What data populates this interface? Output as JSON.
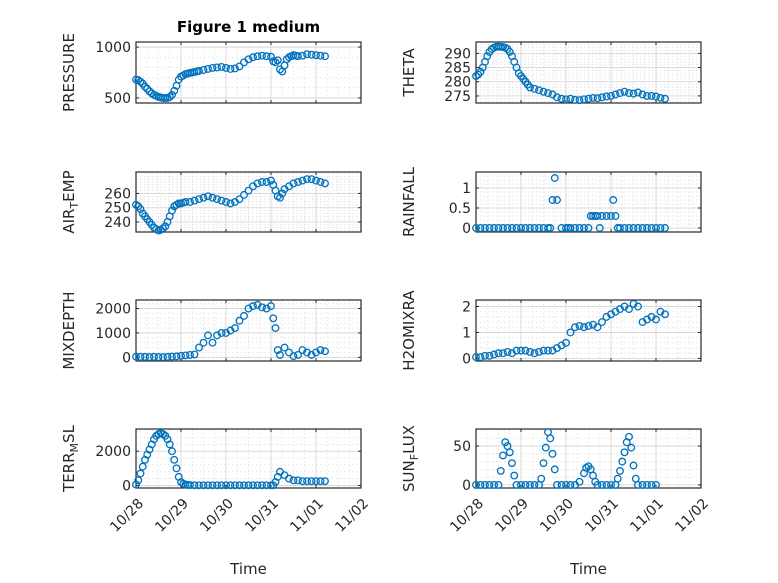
{
  "figure": {
    "title": "Figure 1 medium",
    "marker_color": "#0072bd",
    "grid": "major+minor"
  },
  "chart_data": [
    {
      "type": "scatter",
      "title": "Figure 1 medium",
      "ylabel": "PRESSURE",
      "xlabel": "",
      "xlim": [
        0,
        5
      ],
      "ylim": [
        450,
        1050
      ],
      "yticks": [
        500,
        1000
      ],
      "x": [
        0,
        0.05,
        0.1,
        0.15,
        0.2,
        0.25,
        0.3,
        0.35,
        0.4,
        0.45,
        0.5,
        0.55,
        0.6,
        0.65,
        0.7,
        0.75,
        0.8,
        0.85,
        0.9,
        0.95,
        1.0,
        1.05,
        1.1,
        1.15,
        1.2,
        1.25,
        1.3,
        1.35,
        1.4,
        1.5,
        1.6,
        1.7,
        1.8,
        1.9,
        2.0,
        2.1,
        2.2,
        2.3,
        2.4,
        2.5,
        2.6,
        2.7,
        2.8,
        2.9,
        3.0,
        3.05,
        3.1,
        3.15,
        3.2,
        3.25,
        3.3,
        3.35,
        3.4,
        3.45,
        3.5,
        3.55,
        3.6,
        3.7,
        3.8,
        3.9,
        4.0,
        4.1,
        4.2
      ],
      "y": [
        680,
        675,
        660,
        640,
        610,
        590,
        565,
        545,
        530,
        520,
        510,
        505,
        500,
        498,
        500,
        510,
        530,
        570,
        620,
        680,
        710,
        720,
        735,
        740,
        745,
        750,
        755,
        760,
        765,
        775,
        785,
        795,
        800,
        805,
        795,
        785,
        790,
        810,
        850,
        880,
        900,
        910,
        915,
        910,
        905,
        860,
        850,
        870,
        780,
        760,
        820,
        880,
        900,
        910,
        920,
        915,
        910,
        915,
        930,
        925,
        920,
        915,
        910
      ]
    },
    {
      "type": "scatter",
      "title": "",
      "ylabel": "THETA",
      "xlabel": "",
      "xlim": [
        0,
        5
      ],
      "ylim": [
        272.5,
        294
      ],
      "yticks": [
        275,
        280,
        285,
        290
      ],
      "x": [
        0,
        0.05,
        0.1,
        0.15,
        0.2,
        0.25,
        0.3,
        0.35,
        0.4,
        0.45,
        0.5,
        0.55,
        0.6,
        0.65,
        0.7,
        0.75,
        0.8,
        0.85,
        0.9,
        0.95,
        1.0,
        1.05,
        1.1,
        1.15,
        1.2,
        1.3,
        1.4,
        1.5,
        1.6,
        1.7,
        1.8,
        1.9,
        2.0,
        2.1,
        2.2,
        2.3,
        2.4,
        2.5,
        2.6,
        2.7,
        2.8,
        2.9,
        3.0,
        3.1,
        3.2,
        3.3,
        3.4,
        3.5,
        3.6,
        3.7,
        3.8,
        3.9,
        4.0,
        4.1,
        4.2
      ],
      "y": [
        282,
        282.5,
        283.5,
        285,
        287,
        289,
        290.5,
        291.5,
        292,
        292.3,
        292.4,
        292.3,
        292.2,
        292,
        291.5,
        290.5,
        289,
        287,
        285,
        283,
        282,
        281,
        280,
        279,
        278,
        277.5,
        277,
        276.5,
        276,
        275.5,
        274.5,
        274,
        273.8,
        274,
        273.6,
        273.5,
        273.8,
        274,
        274.3,
        274.2,
        274.5,
        274.8,
        275,
        275.5,
        276,
        276.5,
        276,
        275.8,
        276.2,
        275.5,
        275,
        275,
        274.8,
        274.3,
        274
      ]
    },
    {
      "type": "scatter",
      "title": "",
      "ylabel": "AIR_TEMP",
      "xlabel": "",
      "xlim": [
        0,
        5
      ],
      "ylim": [
        233,
        275
      ],
      "yticks": [
        240,
        250,
        260
      ],
      "x": [
        0,
        0.05,
        0.1,
        0.15,
        0.2,
        0.25,
        0.3,
        0.35,
        0.4,
        0.45,
        0.5,
        0.55,
        0.6,
        0.65,
        0.7,
        0.75,
        0.8,
        0.85,
        0.9,
        0.95,
        1.0,
        1.05,
        1.1,
        1.2,
        1.3,
        1.4,
        1.5,
        1.6,
        1.7,
        1.8,
        1.9,
        2.0,
        2.1,
        2.2,
        2.3,
        2.4,
        2.5,
        2.6,
        2.7,
        2.8,
        2.9,
        3.0,
        3.05,
        3.1,
        3.15,
        3.2,
        3.25,
        3.3,
        3.4,
        3.5,
        3.6,
        3.7,
        3.8,
        3.9,
        4.0,
        4.1,
        4.2
      ],
      "y": [
        252,
        251,
        249,
        246,
        244,
        242,
        240,
        238,
        236,
        235,
        234,
        234.5,
        235.5,
        237,
        240,
        244,
        248,
        251,
        252,
        253,
        253,
        253.5,
        254,
        254,
        255,
        256,
        257,
        258,
        257,
        256,
        255,
        254,
        253,
        254,
        256,
        259,
        262,
        265,
        267,
        268,
        268,
        269,
        266,
        262,
        258,
        257,
        260,
        263,
        265,
        267,
        268,
        269,
        270,
        270,
        269,
        268,
        267
      ]
    },
    {
      "type": "scatter",
      "title": "",
      "ylabel": "RAINFALL",
      "xlabel": "",
      "xlim": [
        0,
        5
      ],
      "ylim": [
        -0.1,
        1.4
      ],
      "yticks": [
        0,
        0.5,
        1
      ],
      "x": [
        0,
        0.1,
        0.2,
        0.3,
        0.4,
        0.5,
        0.6,
        0.7,
        0.8,
        0.9,
        1.0,
        1.1,
        1.2,
        1.3,
        1.4,
        1.5,
        1.6,
        1.65,
        1.7,
        1.75,
        1.8,
        1.9,
        2.0,
        2.05,
        2.1,
        2.2,
        2.3,
        2.4,
        2.5,
        2.55,
        2.6,
        2.65,
        2.7,
        2.75,
        2.8,
        2.9,
        3.0,
        3.05,
        3.1,
        3.15,
        3.2,
        3.3,
        3.4,
        3.5,
        3.6,
        3.7,
        3.8,
        3.9,
        4.0,
        4.1,
        4.2
      ],
      "y": [
        0,
        0,
        0,
        0,
        0,
        0,
        0,
        0,
        0,
        0,
        0,
        0,
        0,
        0,
        0,
        0,
        0,
        0,
        0.7,
        1.25,
        0.7,
        0,
        0,
        0,
        0,
        0,
        0,
        0,
        0,
        0.3,
        0.3,
        0.3,
        0.3,
        0,
        0.3,
        0.3,
        0.3,
        0.7,
        0.3,
        0,
        0,
        0,
        0,
        0,
        0,
        0,
        0,
        0,
        0,
        0,
        0
      ]
    },
    {
      "type": "scatter",
      "title": "",
      "ylabel": "MIXDEPTH",
      "xlabel": "",
      "xlim": [
        0,
        5
      ],
      "ylim": [
        -150,
        2350
      ],
      "yticks": [
        0,
        1000,
        2000
      ],
      "x": [
        0,
        0.1,
        0.2,
        0.3,
        0.4,
        0.5,
        0.6,
        0.7,
        0.8,
        0.9,
        1.0,
        1.1,
        1.2,
        1.3,
        1.4,
        1.5,
        1.6,
        1.7,
        1.8,
        1.9,
        2.0,
        2.1,
        2.2,
        2.3,
        2.4,
        2.5,
        2.6,
        2.7,
        2.8,
        2.9,
        3.0,
        3.05,
        3.1,
        3.15,
        3.2,
        3.3,
        3.4,
        3.5,
        3.6,
        3.7,
        3.8,
        3.9,
        4.0,
        4.1,
        4.2
      ],
      "y": [
        30,
        20,
        20,
        10,
        20,
        10,
        10,
        20,
        30,
        40,
        60,
        80,
        100,
        120,
        400,
        600,
        900,
        600,
        900,
        1000,
        1000,
        1100,
        1200,
        1500,
        1700,
        2000,
        2100,
        2150,
        2050,
        2000,
        2100,
        1600,
        1200,
        300,
        100,
        400,
        200,
        50,
        100,
        300,
        200,
        100,
        200,
        300,
        250
      ]
    },
    {
      "type": "scatter",
      "title": "",
      "ylabel": "H2OMIXRA",
      "xlabel": "",
      "xlim": [
        0,
        5
      ],
      "ylim": [
        -0.1,
        2.25
      ],
      "yticks": [
        0,
        1,
        2
      ],
      "x": [
        0,
        0.1,
        0.2,
        0.3,
        0.4,
        0.5,
        0.6,
        0.7,
        0.8,
        0.9,
        1.0,
        1.1,
        1.2,
        1.3,
        1.4,
        1.5,
        1.6,
        1.7,
        1.8,
        1.9,
        2.0,
        2.1,
        2.2,
        2.3,
        2.4,
        2.5,
        2.6,
        2.7,
        2.8,
        2.9,
        3.0,
        3.1,
        3.2,
        3.3,
        3.4,
        3.5,
        3.6,
        3.7,
        3.8,
        3.9,
        4.0,
        4.1,
        4.2
      ],
      "y": [
        0.05,
        0.05,
        0.1,
        0.1,
        0.15,
        0.2,
        0.2,
        0.25,
        0.2,
        0.3,
        0.3,
        0.3,
        0.25,
        0.2,
        0.25,
        0.3,
        0.3,
        0.3,
        0.4,
        0.5,
        0.6,
        1.0,
        1.2,
        1.25,
        1.2,
        1.25,
        1.3,
        1.2,
        1.4,
        1.6,
        1.7,
        1.8,
        1.9,
        2.0,
        1.9,
        2.1,
        2.0,
        1.4,
        1.5,
        1.6,
        1.5,
        1.8,
        1.7
      ]
    },
    {
      "type": "scatter",
      "title": "",
      "ylabel": "TERR_MSL",
      "xlabel": "Time",
      "xlim": [
        0,
        5
      ],
      "ylim": [
        -150,
        3300
      ],
      "yticks": [
        0,
        2000
      ],
      "xtick_labels": [
        "10/28",
        "10/29",
        "10/30",
        "10/31",
        "11/01",
        "11/02"
      ],
      "x": [
        0,
        0.05,
        0.1,
        0.15,
        0.2,
        0.25,
        0.3,
        0.35,
        0.4,
        0.45,
        0.5,
        0.55,
        0.6,
        0.65,
        0.7,
        0.75,
        0.8,
        0.85,
        0.9,
        0.95,
        1.0,
        1.05,
        1.1,
        1.15,
        1.2,
        1.3,
        1.4,
        1.5,
        1.6,
        1.7,
        1.8,
        1.9,
        2.0,
        2.1,
        2.2,
        2.3,
        2.4,
        2.5,
        2.6,
        2.7,
        2.8,
        2.9,
        3.0,
        3.05,
        3.1,
        3.15,
        3.2,
        3.3,
        3.4,
        3.5,
        3.6,
        3.7,
        3.8,
        3.9,
        4.0,
        4.1,
        4.2
      ],
      "y": [
        50,
        300,
        700,
        1100,
        1500,
        1800,
        2100,
        2400,
        2700,
        2900,
        3000,
        3050,
        3000,
        2900,
        2700,
        2400,
        2000,
        1500,
        1000,
        500,
        200,
        100,
        50,
        30,
        20,
        10,
        10,
        10,
        10,
        10,
        10,
        10,
        10,
        10,
        10,
        10,
        10,
        10,
        10,
        10,
        10,
        10,
        10,
        10,
        200,
        500,
        800,
        600,
        400,
        300,
        300,
        250,
        250,
        250,
        250,
        250,
        250
      ]
    },
    {
      "type": "scatter",
      "title": "",
      "ylabel": "SUN_FLUX",
      "xlabel": "Time",
      "xlim": [
        0,
        5
      ],
      "ylim": [
        -4,
        72
      ],
      "yticks": [
        0,
        50
      ],
      "xtick_labels": [
        "10/28",
        "10/29",
        "10/30",
        "10/31",
        "11/01",
        "11/02"
      ],
      "x": [
        0,
        0.1,
        0.2,
        0.3,
        0.4,
        0.5,
        0.55,
        0.6,
        0.65,
        0.7,
        0.75,
        0.8,
        0.85,
        0.9,
        1.0,
        1.1,
        1.2,
        1.3,
        1.4,
        1.45,
        1.5,
        1.55,
        1.6,
        1.65,
        1.7,
        1.75,
        1.8,
        1.9,
        2.0,
        2.1,
        2.2,
        2.3,
        2.4,
        2.45,
        2.5,
        2.55,
        2.6,
        2.65,
        2.7,
        2.8,
        2.9,
        3.0,
        3.1,
        3.15,
        3.2,
        3.25,
        3.3,
        3.35,
        3.4,
        3.45,
        3.5,
        3.55,
        3.6,
        3.7,
        3.8,
        3.9,
        4.0
      ],
      "y": [
        0,
        0,
        0,
        0,
        0,
        0,
        18,
        38,
        55,
        50,
        42,
        28,
        12,
        0,
        0,
        0,
        0,
        0,
        0,
        8,
        28,
        48,
        68,
        60,
        40,
        20,
        0,
        0,
        0,
        0,
        0,
        4,
        15,
        22,
        24,
        20,
        12,
        4,
        0,
        0,
        0,
        0,
        0,
        8,
        18,
        30,
        42,
        55,
        62,
        48,
        25,
        8,
        0,
        0,
        0,
        0,
        0
      ]
    }
  ]
}
